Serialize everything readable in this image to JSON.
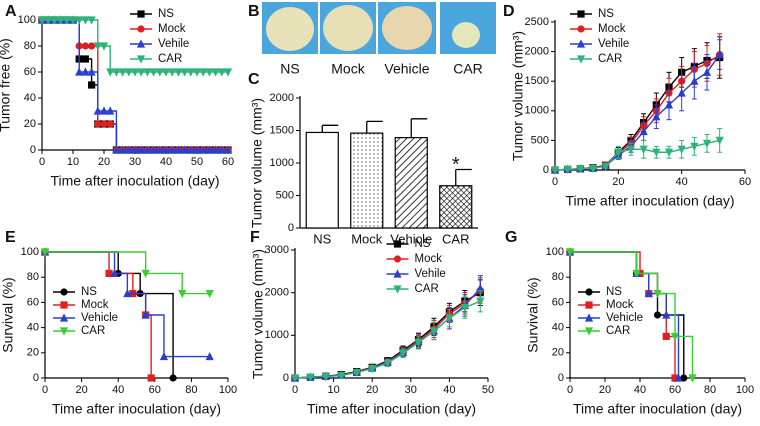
{
  "images": {
    "panel": "B",
    "labels": [
      "NS",
      "Mock",
      "Vehicle",
      "CAR"
    ]
  },
  "chart_data": [
    {
      "type": "line",
      "panel": "A",
      "step": true,
      "legend": "upper-center",
      "y_label": "Tumor free (%)",
      "x_label": "Time after inoculation (day)",
      "xlim": [
        0,
        60
      ],
      "xticks": [
        0,
        10,
        20,
        30,
        40,
        50,
        60
      ],
      "ylim": [
        0,
        100
      ],
      "yticks": [
        0,
        20,
        40,
        60,
        80,
        100
      ],
      "x": [
        0,
        2,
        4,
        6,
        8,
        10,
        12,
        14,
        16,
        18,
        20,
        22,
        24,
        26,
        28,
        30,
        32,
        34,
        36,
        38,
        40,
        42,
        44,
        46,
        48,
        50,
        52,
        54,
        56,
        58,
        60
      ],
      "series": [
        {
          "name": "NS",
          "color": "#000000",
          "marker": "square",
          "values": [
            100,
            100,
            100,
            100,
            100,
            100,
            70,
            70,
            50,
            20,
            20,
            20,
            0,
            0,
            0,
            0,
            0,
            0,
            0,
            0,
            0,
            0,
            0,
            0,
            0,
            0,
            0,
            0,
            0,
            0,
            0
          ]
        },
        {
          "name": "Mock",
          "color": "#e02020",
          "marker": "circle",
          "values": [
            100,
            100,
            100,
            100,
            100,
            100,
            80,
            80,
            80,
            20,
            20,
            20,
            0,
            0,
            0,
            0,
            0,
            0,
            0,
            0,
            0,
            0,
            0,
            0,
            0,
            0,
            0,
            0,
            0,
            0,
            0
          ]
        },
        {
          "name": "Vehile",
          "color": "#2a3fd0",
          "marker": "triangle-up",
          "values": [
            100,
            100,
            100,
            100,
            100,
            100,
            60,
            60,
            60,
            30,
            30,
            30,
            0,
            0,
            0,
            0,
            0,
            0,
            0,
            0,
            0,
            0,
            0,
            0,
            0,
            0,
            0,
            0,
            0,
            0,
            0
          ]
        },
        {
          "name": "CAR",
          "color": "#2db37a",
          "marker": "triangle-down",
          "values": [
            100,
            100,
            100,
            100,
            100,
            100,
            100,
            100,
            100,
            80,
            80,
            60,
            60,
            60,
            60,
            60,
            60,
            60,
            60,
            60,
            60,
            60,
            60,
            60,
            60,
            60,
            60,
            60,
            60,
            60,
            60
          ]
        }
      ]
    },
    {
      "type": "bar",
      "panel": "C",
      "y_label": "Tumor volume (mm³)",
      "ylim": [
        0,
        2000
      ],
      "yticks": [
        0,
        500,
        1000,
        1500,
        2000
      ],
      "categories": [
        "NS",
        "Mock",
        "Vehicle",
        "CAR"
      ],
      "values": [
        1470,
        1460,
        1390,
        650
      ],
      "errors": [
        110,
        180,
        290,
        250
      ],
      "patterns": [
        "none",
        "dots",
        "hatch",
        "cross"
      ],
      "color": "#000000",
      "value_annotations": [
        null,
        null,
        null,
        "*"
      ]
    },
    {
      "type": "line",
      "panel": "D",
      "step": false,
      "legend": "upper-left",
      "y_label": "Tumor volume (mm³)",
      "x_label": "Time after inoculation (day)",
      "xlim": [
        0,
        60
      ],
      "xticks": [
        0,
        20,
        40,
        60
      ],
      "ylim": [
        0,
        2500
      ],
      "yticks": [
        0,
        500,
        1000,
        1500,
        2000,
        2500
      ],
      "x": [
        0,
        4,
        8,
        12,
        16,
        20,
        24,
        28,
        32,
        36,
        40,
        44,
        48,
        52
      ],
      "series": [
        {
          "name": "NS",
          "color": "#000000",
          "marker": "square",
          "values": [
            0,
            10,
            20,
            40,
            80,
            300,
            500,
            800,
            1100,
            1400,
            1650,
            1750,
            1850,
            1900
          ],
          "errors": [
            5,
            10,
            10,
            20,
            30,
            80,
            100,
            150,
            200,
            250,
            250,
            300,
            300,
            350
          ]
        },
        {
          "name": "Mock",
          "color": "#e02020",
          "marker": "circle",
          "values": [
            0,
            10,
            20,
            40,
            80,
            280,
            450,
            750,
            1000,
            1300,
            1500,
            1700,
            1800,
            1950
          ],
          "errors": [
            5,
            10,
            10,
            20,
            30,
            70,
            100,
            150,
            200,
            250,
            250,
            300,
            300,
            350
          ]
        },
        {
          "name": "Vehile",
          "color": "#2a3fd0",
          "marker": "triangle-up",
          "values": [
            0,
            10,
            20,
            30,
            70,
            250,
            400,
            650,
            900,
            1100,
            1300,
            1500,
            1650,
            1950
          ],
          "errors": [
            5,
            10,
            10,
            20,
            30,
            70,
            100,
            150,
            200,
            250,
            300,
            300,
            300,
            250
          ]
        },
        {
          "name": "CAR",
          "color": "#2db37a",
          "marker": "triangle-down",
          "values": [
            0,
            10,
            20,
            30,
            60,
            300,
            350,
            350,
            300,
            300,
            350,
            400,
            450,
            500
          ],
          "errors": [
            5,
            10,
            10,
            20,
            30,
            100,
            100,
            150,
            100,
            100,
            150,
            150,
            150,
            200
          ]
        }
      ]
    },
    {
      "type": "line",
      "panel": "E",
      "step": true,
      "legend": "lower-left",
      "y_label": "Survival (%)",
      "x_label": "Time after inoculation (day)",
      "xlim": [
        0,
        100
      ],
      "xticks": [
        0,
        20,
        40,
        60,
        80,
        100
      ],
      "ylim": [
        0,
        100
      ],
      "yticks": [
        0,
        20,
        40,
        60,
        80,
        100
      ],
      "series": [
        {
          "name": "NS",
          "color": "#000000",
          "marker": "circle",
          "x": [
            0,
            40,
            52,
            70
          ],
          "values": [
            100,
            83,
            67,
            0
          ]
        },
        {
          "name": "Mock",
          "color": "#e02020",
          "marker": "square",
          "x": [
            0,
            35,
            48,
            55,
            58
          ],
          "values": [
            100,
            83,
            67,
            50,
            0
          ]
        },
        {
          "name": "Vehicle",
          "color": "#2a3fd0",
          "marker": "triangle-up",
          "x": [
            0,
            38,
            45,
            55,
            65,
            90
          ],
          "values": [
            100,
            83,
            67,
            50,
            17,
            17
          ]
        },
        {
          "name": "CAR",
          "color": "#3ccc33",
          "marker": "triangle-down",
          "x": [
            0,
            55,
            75,
            90
          ],
          "values": [
            100,
            83,
            67,
            67
          ]
        }
      ]
    },
    {
      "type": "line",
      "panel": "F",
      "step": false,
      "legend": "upper-center",
      "y_label": "Tumor volume (mm³)",
      "x_label": "Time after inoculation (day)",
      "xlim": [
        0,
        50
      ],
      "xticks": [
        0,
        10,
        20,
        30,
        40,
        50
      ],
      "ylim": [
        0,
        3000
      ],
      "yticks": [
        0,
        1000,
        2000,
        3000
      ],
      "x": [
        0,
        4,
        8,
        12,
        16,
        20,
        24,
        28,
        32,
        36,
        40,
        44,
        48
      ],
      "series": [
        {
          "name": "NS",
          "color": "#000000",
          "marker": "square",
          "values": [
            0,
            20,
            40,
            80,
            150,
            250,
            400,
            650,
            900,
            1200,
            1550,
            1800,
            2000
          ],
          "errors": [
            5,
            10,
            10,
            20,
            30,
            50,
            80,
            100,
            150,
            200,
            200,
            250,
            300
          ]
        },
        {
          "name": "Mock",
          "color": "#e02020",
          "marker": "circle",
          "values": [
            0,
            20,
            40,
            70,
            140,
            240,
            380,
            620,
            880,
            1150,
            1500,
            1750,
            2050
          ],
          "errors": [
            5,
            10,
            10,
            20,
            30,
            50,
            80,
            100,
            150,
            200,
            200,
            250,
            300
          ]
        },
        {
          "name": "Vehile",
          "color": "#2a3fd0",
          "marker": "triangle-up",
          "values": [
            0,
            20,
            40,
            70,
            130,
            230,
            370,
            600,
            850,
            1100,
            1400,
            1700,
            2100
          ],
          "errors": [
            5,
            10,
            10,
            20,
            30,
            50,
            80,
            100,
            150,
            200,
            250,
            250,
            300
          ]
        },
        {
          "name": "CAR",
          "color": "#2db37a",
          "marker": "triangle-down",
          "values": [
            0,
            20,
            30,
            60,
            130,
            220,
            350,
            580,
            830,
            1100,
            1400,
            1650,
            1800
          ],
          "errors": [
            5,
            10,
            10,
            20,
            30,
            50,
            80,
            100,
            150,
            200,
            200,
            250,
            250
          ]
        }
      ]
    },
    {
      "type": "line",
      "panel": "G",
      "step": true,
      "legend": "lower-left",
      "y_label": "Survival (%)",
      "x_label": "Time after inoculation (day)",
      "xlim": [
        0,
        100
      ],
      "xticks": [
        0,
        20,
        40,
        60,
        80,
        100
      ],
      "ylim": [
        0,
        100
      ],
      "yticks": [
        0,
        20,
        40,
        60,
        80,
        100
      ],
      "series": [
        {
          "name": "NS",
          "color": "#000000",
          "marker": "circle",
          "x": [
            0,
            38,
            50,
            65
          ],
          "values": [
            100,
            83,
            50,
            0
          ]
        },
        {
          "name": "Mock",
          "color": "#e02020",
          "marker": "square",
          "x": [
            0,
            40,
            45,
            55,
            60
          ],
          "values": [
            100,
            83,
            67,
            33,
            0
          ]
        },
        {
          "name": "Vehicle",
          "color": "#2a3fd0",
          "marker": "triangle-up",
          "x": [
            0,
            38,
            45,
            55,
            62
          ],
          "values": [
            100,
            83,
            67,
            50,
            0
          ]
        },
        {
          "name": "CAR",
          "color": "#3ccc33",
          "marker": "triangle-down",
          "x": [
            0,
            38,
            50,
            60,
            70
          ],
          "values": [
            100,
            83,
            67,
            33,
            0
          ]
        }
      ]
    }
  ]
}
